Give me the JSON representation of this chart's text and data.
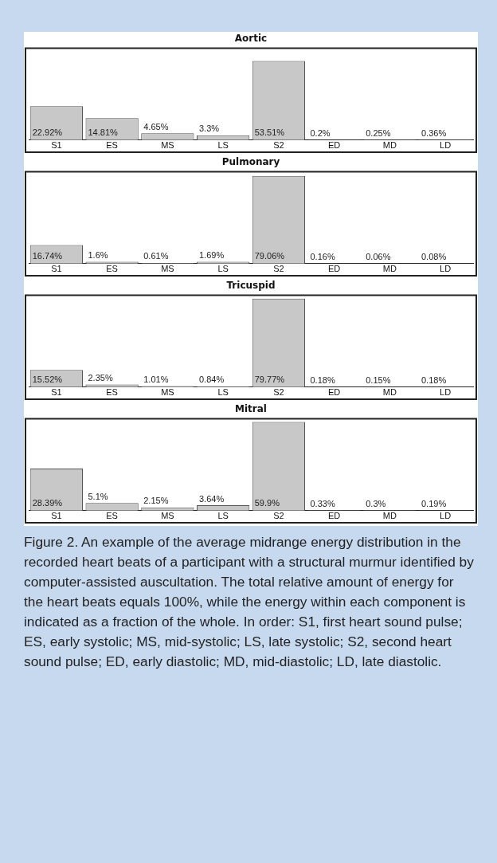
{
  "chart_data": [
    {
      "type": "bar",
      "title": "Aortic",
      "categories": [
        "S1",
        "ES",
        "MS",
        "LS",
        "S2",
        "ED",
        "MD",
        "LD"
      ],
      "color": "#c8c8c8",
      "values": [
        22.92,
        14.81,
        4.65,
        3.3,
        53.51,
        0.2,
        0.25,
        0.36
      ],
      "value_labels": [
        "22.92%",
        "14.81%",
        "4.65%",
        "3.3%",
        "53.51%",
        "0.2%",
        "0.25%",
        "0.36%"
      ],
      "grid": false,
      "legend": false
    },
    {
      "type": "bar",
      "title": "Pulmonary",
      "categories": [
        "S1",
        "ES",
        "MS",
        "LS",
        "S2",
        "ED",
        "MD",
        "LD"
      ],
      "color": "#c8c8c8",
      "values": [
        16.74,
        1.6,
        0.61,
        1.69,
        79.06,
        0.16,
        0.06,
        0.08
      ],
      "value_labels": [
        "16.74%",
        "1.6%",
        "0.61%",
        "1.69%",
        "79.06%",
        "0.16%",
        "0.06%",
        "0.08%"
      ],
      "grid": false,
      "legend": false
    },
    {
      "type": "bar",
      "title": "Tricuspid",
      "categories": [
        "S1",
        "ES",
        "MS",
        "LS",
        "S2",
        "ED",
        "MD",
        "LD"
      ],
      "color": "#c8c8c8",
      "values": [
        15.52,
        2.35,
        1.01,
        0.84,
        79.77,
        0.18,
        0.15,
        0.18
      ],
      "value_labels": [
        "15.52%",
        "2.35%",
        "1.01%",
        "0.84%",
        "79.77%",
        "0.18%",
        "0.15%",
        "0.18%"
      ],
      "grid": false,
      "legend": false
    },
    {
      "type": "bar",
      "title": "Mitral",
      "categories": [
        "S1",
        "ES",
        "MS",
        "LS",
        "S2",
        "ED",
        "MD",
        "LD"
      ],
      "color": "#c8c8c8",
      "values": [
        28.39,
        5.1,
        2.15,
        3.64,
        59.9,
        0.33,
        0.3,
        0.19
      ],
      "value_labels": [
        "28.39%",
        "5.1%",
        "2.15%",
        "3.64%",
        "59.9%",
        "0.33%",
        "0.3%",
        "0.19%"
      ],
      "grid": false,
      "legend": false,
      "annotations": [
        "Figure 2.  An example of the average midrange energy distribution in the recorded heart beats of a participant with a structural murmur identified by computer-assisted auscultation. The total relative amount of energy for the heart beats equals 100%, while the energy within each component is indicated as a fraction of the whole. In order: S1, first heart sound pulse; ES, early systolic; MS, mid-systolic; LS, late systolic; S2, second heart sound pulse; ED, early diastolic; MD, mid-diastolic; LD, late diastolic."
      ]
    }
  ]
}
